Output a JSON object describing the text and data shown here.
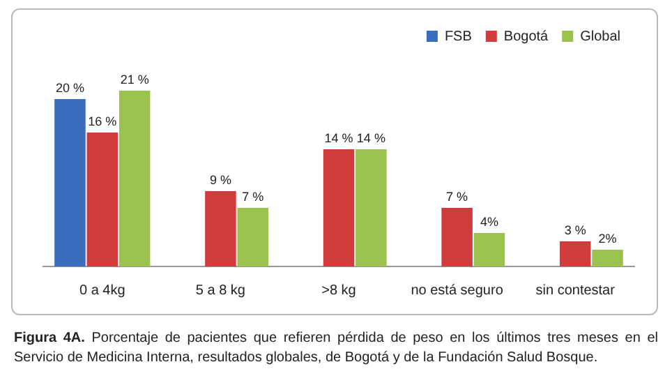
{
  "chart_data": {
    "type": "bar",
    "categories": [
      "0 a 4kg",
      "5 a 8 kg",
      ">8 kg",
      "no está seguro",
      "sin contestar"
    ],
    "series": [
      {
        "name": "FSB",
        "color": "#3b6dbf",
        "values": [
          20,
          null,
          null,
          null,
          null
        ],
        "value_labels": [
          "20 %",
          null,
          null,
          null,
          null
        ]
      },
      {
        "name": "Bogotá",
        "color": "#d23b3b",
        "values": [
          16,
          9,
          14,
          7,
          3
        ],
        "value_labels": [
          "16 %",
          "9 %",
          "14 %",
          "7 %",
          "3 %"
        ]
      },
      {
        "name": "Global",
        "color": "#9cc24e",
        "values": [
          21,
          7,
          14,
          4,
          2
        ],
        "value_labels": [
          "21 %",
          "7 %",
          "14 %",
          "4%",
          "2%"
        ]
      }
    ],
    "legend": "top right",
    "grid": false,
    "relative": false,
    "annotations": [
      "Figura 4A.",
      "Porcentaje de pacientes que refieren pérdida de peso en los últimos tres meses en el Servicio de Medicina Interna, resultados globales, de Bogotá y de la Fundación Salud Bosque."
    ]
  }
}
